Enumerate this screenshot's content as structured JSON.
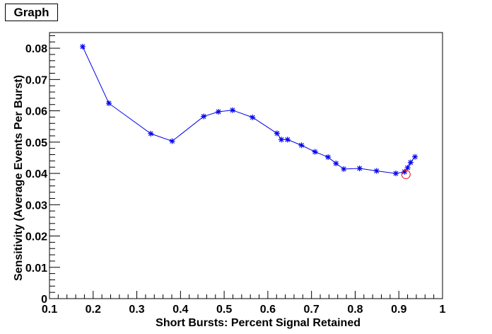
{
  "chart_data": {
    "type": "line",
    "title": "Graph",
    "xlabel": "Short Bursts: Percent Signal Retained",
    "ylabel": "Sensitivity (Average Events Per Burst)",
    "xlim": [
      0.1,
      1.0
    ],
    "ylim": [
      0,
      0.085
    ],
    "x_ticks": [
      "0.1",
      "0.2",
      "0.3",
      "0.4",
      "0.5",
      "0.6",
      "0.7",
      "0.8",
      "0.9",
      "1"
    ],
    "y_ticks": [
      "0",
      "0.01",
      "0.02",
      "0.03",
      "0.04",
      "0.05",
      "0.06",
      "0.07",
      "0.08"
    ],
    "grid": false,
    "line_color": "#0000ee",
    "marker": "asterisk",
    "highlight_color": "#ee0000",
    "series": [
      {
        "x": [
          0.176,
          0.236,
          0.332,
          0.381,
          0.453,
          0.487,
          0.519,
          0.565,
          0.621,
          0.631,
          0.645,
          0.677,
          0.708,
          0.738,
          0.756,
          0.774,
          0.81,
          0.849,
          0.893,
          0.913,
          0.92,
          0.927,
          0.937
        ],
        "y": [
          0.0805,
          0.0624,
          0.0527,
          0.0503,
          0.0582,
          0.0597,
          0.0602,
          0.0579,
          0.0528,
          0.0508,
          0.0508,
          0.049,
          0.0469,
          0.0452,
          0.0432,
          0.0414,
          0.0416,
          0.0408,
          0.04,
          0.0405,
          0.0418,
          0.0435,
          0.0453
        ]
      }
    ],
    "highlight_point": {
      "x": 0.913,
      "y": 0.04
    }
  }
}
